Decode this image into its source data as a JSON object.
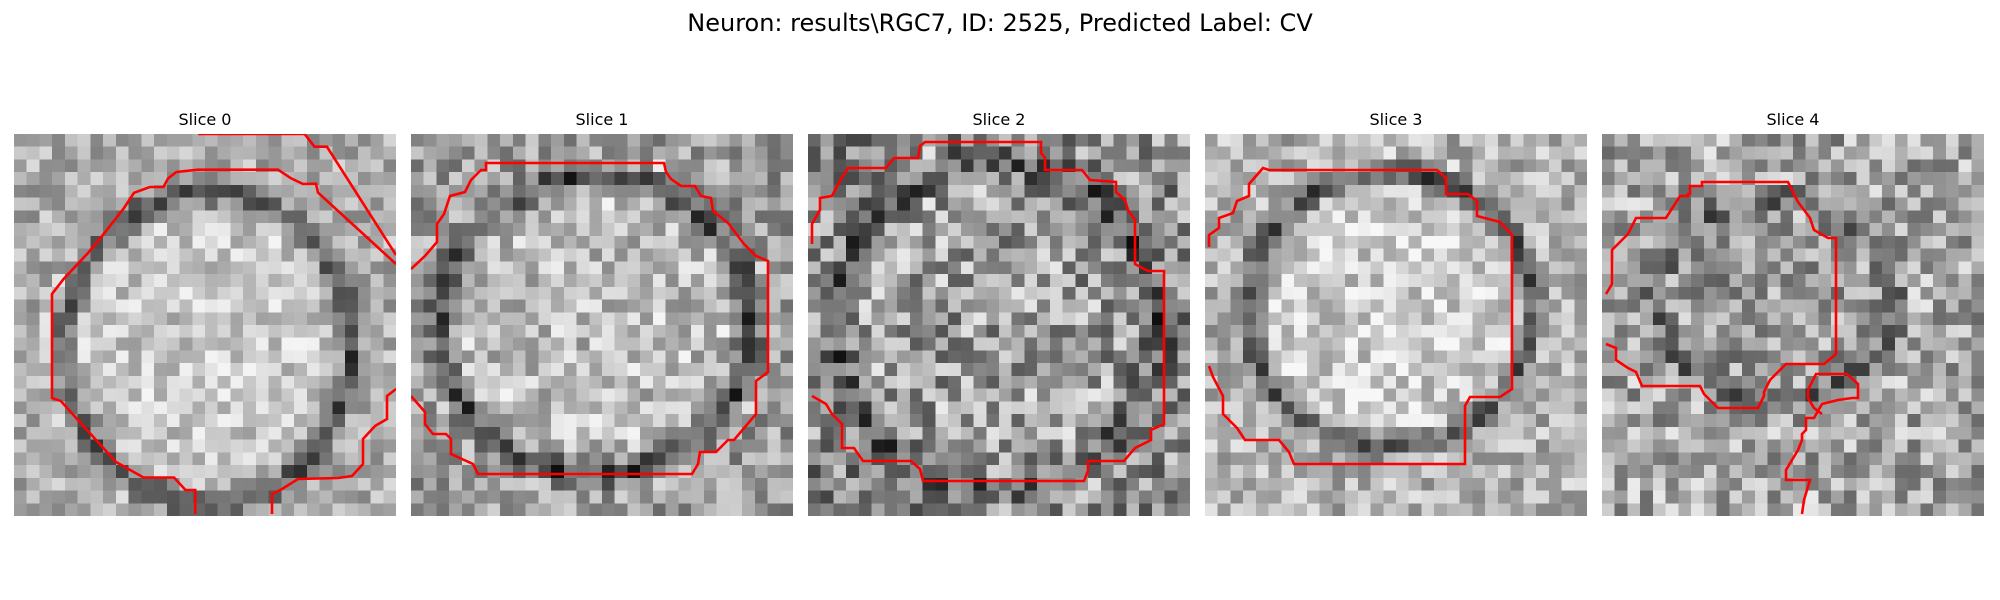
{
  "figure": {
    "title": "Neuron: results\\RGC7, ID: 2525, Predicted Label: CV"
  },
  "contour_color": "#ff0000",
  "panels": [
    {
      "title": "Slice 0"
    },
    {
      "title": "Slice 1"
    },
    {
      "title": "Slice 2"
    },
    {
      "title": "Slice 3"
    },
    {
      "title": "Slice 4"
    }
  ]
}
